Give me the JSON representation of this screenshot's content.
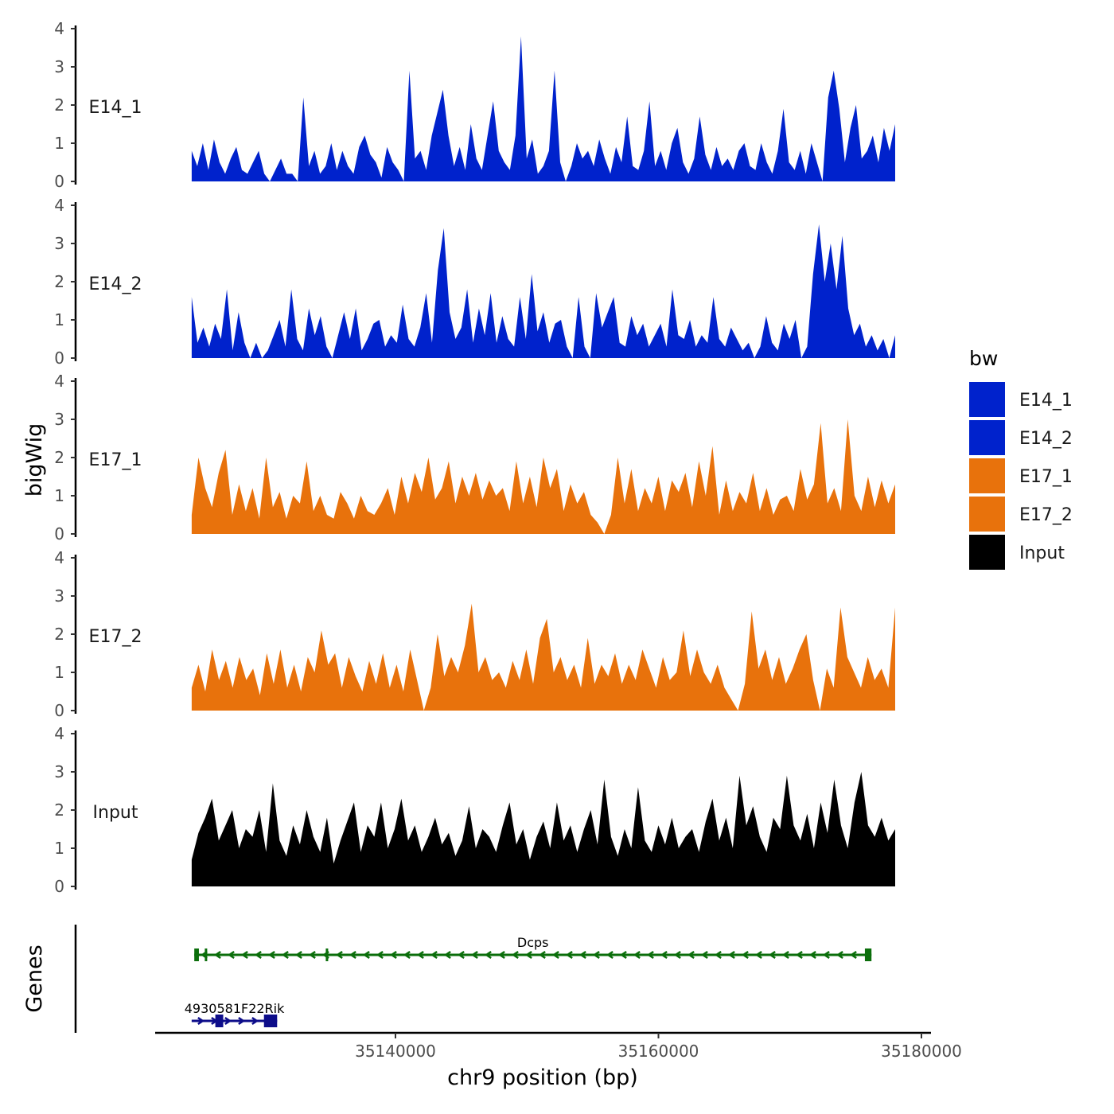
{
  "chart_data": {
    "type": "area",
    "title": "",
    "xlabel": "chr9 position (bp)",
    "ylabel": "bigWig",
    "genes_axis_label": "Genes",
    "xlim": [
      35122000,
      35180000
    ],
    "xticks": [
      35140000,
      35160000,
      35180000
    ],
    "x_tick_labels": [
      "35140000",
      "35160000",
      "35180000"
    ],
    "ylim": [
      0,
      4
    ],
    "yticks": [
      0,
      1,
      2,
      3,
      4
    ],
    "y_tick_labels": [
      "0",
      "1",
      "2",
      "3",
      "4"
    ],
    "legend": {
      "title": "bw",
      "position": "right",
      "entries": [
        {
          "name": "E14_1",
          "color": "#0022CC"
        },
        {
          "name": "E14_2",
          "color": "#0022CC"
        },
        {
          "name": "E17_1",
          "color": "#E8720C"
        },
        {
          "name": "E17_2",
          "color": "#E8720C"
        },
        {
          "name": "Input",
          "color": "#000000"
        }
      ]
    },
    "series": [
      {
        "name": "E14_1",
        "color": "#0022CC",
        "x_start": 35124500,
        "x_end": 35178000,
        "values": [
          0.8,
          0.4,
          1.0,
          0.3,
          1.1,
          0.5,
          0.2,
          0.6,
          0.9,
          0.3,
          0.2,
          0.5,
          0.8,
          0.2,
          0.0,
          0.3,
          0.6,
          0.2,
          0.2,
          0.0,
          2.2,
          0.4,
          0.8,
          0.2,
          0.4,
          1.0,
          0.3,
          0.8,
          0.4,
          0.2,
          0.9,
          1.2,
          0.7,
          0.5,
          0.1,
          0.9,
          0.5,
          0.3,
          0.0,
          2.9,
          0.6,
          0.8,
          0.3,
          1.2,
          1.8,
          2.4,
          1.2,
          0.4,
          0.9,
          0.3,
          1.5,
          0.6,
          0.3,
          1.2,
          2.1,
          0.8,
          0.5,
          0.3,
          1.2,
          3.8,
          0.6,
          1.1,
          0.2,
          0.4,
          0.8,
          2.9,
          0.5,
          0.0,
          0.4,
          1.0,
          0.6,
          0.8,
          0.4,
          1.1,
          0.6,
          0.2,
          0.9,
          0.5,
          1.7,
          0.4,
          0.3,
          0.8,
          2.1,
          0.4,
          0.8,
          0.3,
          1.0,
          1.4,
          0.5,
          0.2,
          0.6,
          1.7,
          0.7,
          0.3,
          0.9,
          0.4,
          0.6,
          0.3,
          0.8,
          1.0,
          0.4,
          0.3,
          1.0,
          0.5,
          0.2,
          0.8,
          1.9,
          0.5,
          0.3,
          0.8,
          0.2,
          1.0,
          0.5,
          0.0,
          2.2,
          2.9,
          1.9,
          0.5,
          1.4,
          2.0,
          0.6,
          0.8,
          1.2,
          0.5,
          1.4,
          0.8,
          1.5
        ]
      },
      {
        "name": "E14_2",
        "color": "#0022CC",
        "x_start": 35124500,
        "x_end": 35178000,
        "values": [
          1.6,
          0.4,
          0.8,
          0.3,
          0.9,
          0.5,
          1.8,
          0.2,
          1.2,
          0.4,
          0.0,
          0.4,
          0.0,
          0.2,
          0.6,
          1.0,
          0.3,
          1.8,
          0.5,
          0.2,
          1.3,
          0.6,
          1.1,
          0.3,
          0.0,
          0.6,
          1.2,
          0.5,
          1.3,
          0.2,
          0.5,
          0.9,
          1.0,
          0.3,
          0.6,
          0.4,
          1.4,
          0.5,
          0.3,
          0.8,
          1.7,
          0.4,
          2.3,
          3.4,
          1.2,
          0.5,
          0.8,
          1.8,
          0.4,
          1.3,
          0.6,
          1.7,
          0.4,
          1.1,
          0.5,
          0.3,
          1.6,
          0.5,
          2.2,
          0.7,
          1.2,
          0.4,
          0.9,
          1.0,
          0.3,
          0.0,
          1.6,
          0.3,
          0.0,
          1.7,
          0.8,
          1.2,
          1.6,
          0.4,
          0.3,
          1.1,
          0.6,
          0.9,
          0.3,
          0.6,
          0.9,
          0.3,
          1.8,
          0.6,
          0.5,
          1.0,
          0.3,
          0.6,
          0.4,
          1.6,
          0.5,
          0.3,
          0.8,
          0.5,
          0.2,
          0.4,
          0.0,
          0.3,
          1.1,
          0.4,
          0.2,
          0.9,
          0.5,
          1.0,
          0.0,
          0.3,
          2.2,
          3.5,
          2.0,
          3.0,
          1.8,
          3.2,
          1.3,
          0.6,
          0.9,
          0.3,
          0.6,
          0.2,
          0.5,
          0.0,
          0.6
        ]
      },
      {
        "name": "E17_1",
        "color": "#E8720C",
        "x_start": 35124500,
        "x_end": 35178000,
        "values": [
          0.5,
          2.0,
          1.2,
          0.7,
          1.6,
          2.2,
          0.5,
          1.3,
          0.6,
          1.2,
          0.4,
          2.0,
          0.7,
          1.1,
          0.4,
          1.0,
          0.8,
          1.9,
          0.6,
          1.0,
          0.5,
          0.4,
          1.1,
          0.8,
          0.4,
          1.0,
          0.6,
          0.5,
          0.8,
          1.2,
          0.5,
          1.5,
          0.8,
          1.6,
          1.1,
          2.0,
          0.9,
          1.2,
          1.9,
          0.8,
          1.5,
          1.0,
          1.6,
          0.9,
          1.4,
          1.0,
          1.2,
          0.6,
          1.9,
          0.8,
          1.5,
          0.7,
          2.0,
          1.2,
          1.7,
          0.6,
          1.3,
          0.8,
          1.1,
          0.5,
          0.3,
          0.0,
          0.5,
          2.0,
          0.8,
          1.7,
          0.6,
          1.2,
          0.8,
          1.5,
          0.6,
          1.4,
          1.1,
          1.6,
          0.7,
          1.9,
          1.0,
          2.3,
          0.5,
          1.4,
          0.6,
          1.1,
          0.8,
          1.6,
          0.6,
          1.2,
          0.5,
          0.9,
          1.0,
          0.6,
          1.7,
          0.9,
          1.3,
          2.9,
          0.8,
          1.2,
          0.6,
          3.0,
          1.0,
          0.6,
          1.5,
          0.7,
          1.4,
          0.8,
          1.3
        ]
      },
      {
        "name": "E17_2",
        "color": "#E8720C",
        "x_start": 35124500,
        "x_end": 35178000,
        "values": [
          0.6,
          1.2,
          0.5,
          1.6,
          0.8,
          1.3,
          0.6,
          1.4,
          0.8,
          1.1,
          0.4,
          1.5,
          0.7,
          1.6,
          0.6,
          1.2,
          0.5,
          1.4,
          1.0,
          2.1,
          1.2,
          1.5,
          0.6,
          1.4,
          0.9,
          0.5,
          1.3,
          0.7,
          1.5,
          0.6,
          1.2,
          0.5,
          1.6,
          0.8,
          0.0,
          0.6,
          2.0,
          0.9,
          1.4,
          1.0,
          1.7,
          2.8,
          1.0,
          1.4,
          0.8,
          1.0,
          0.6,
          1.3,
          0.8,
          1.6,
          0.7,
          1.9,
          2.4,
          1.0,
          1.4,
          0.8,
          1.2,
          0.6,
          1.9,
          0.7,
          1.2,
          0.9,
          1.5,
          0.7,
          1.2,
          0.8,
          1.6,
          1.1,
          0.6,
          1.4,
          0.8,
          1.0,
          2.1,
          0.9,
          1.6,
          1.0,
          0.7,
          1.2,
          0.6,
          0.3,
          0.0,
          0.7,
          2.6,
          1.1,
          1.6,
          0.8,
          1.4,
          0.7,
          1.1,
          1.6,
          2.0,
          0.8,
          0.0,
          1.1,
          0.6,
          2.7,
          1.4,
          1.0,
          0.6,
          1.4,
          0.8,
          1.1,
          0.6,
          2.7
        ]
      },
      {
        "name": "Input",
        "color": "#000000",
        "x_start": 35124500,
        "x_end": 35178000,
        "values": [
          0.7,
          1.4,
          1.8,
          2.3,
          1.2,
          1.6,
          2.0,
          1.0,
          1.5,
          1.3,
          2.0,
          0.9,
          2.7,
          1.2,
          0.8,
          1.6,
          1.1,
          2.0,
          1.3,
          0.9,
          1.8,
          0.6,
          1.2,
          1.7,
          2.2,
          0.9,
          1.6,
          1.3,
          2.2,
          1.0,
          1.5,
          2.3,
          1.2,
          1.6,
          0.9,
          1.3,
          1.8,
          1.1,
          1.4,
          0.8,
          1.2,
          2.1,
          1.0,
          1.5,
          1.3,
          0.9,
          1.6,
          2.2,
          1.1,
          1.5,
          0.7,
          1.3,
          1.7,
          1.0,
          2.2,
          1.2,
          1.6,
          0.9,
          1.5,
          2.0,
          1.1,
          2.8,
          1.3,
          0.8,
          1.5,
          1.0,
          2.6,
          1.2,
          0.9,
          1.6,
          1.1,
          1.8,
          1.0,
          1.3,
          1.5,
          0.9,
          1.7,
          2.3,
          1.2,
          1.8,
          1.0,
          2.9,
          1.6,
          2.1,
          1.3,
          0.9,
          1.8,
          1.5,
          2.9,
          1.6,
          1.2,
          1.9,
          1.0,
          2.2,
          1.4,
          2.8,
          1.6,
          1.0,
          2.2,
          3.0,
          1.6,
          1.3,
          1.8,
          1.2,
          1.5
        ]
      }
    ],
    "genes": [
      {
        "name": "Dcps",
        "strand": "-",
        "color": "#0B6E0B",
        "start": 35124700,
        "end": 35176200,
        "exons": [
          [
            35124700,
            35125050
          ],
          [
            35125500,
            35125620
          ],
          [
            35134700,
            35134800
          ],
          [
            35175700,
            35176200
          ]
        ]
      },
      {
        "name": "4930581F22Rik",
        "strand": "+",
        "color": "#0D0D8A",
        "start": 35124500,
        "end": 35131000,
        "exons": [
          [
            35126300,
            35126900
          ],
          [
            35130000,
            35131000
          ]
        ]
      }
    ]
  }
}
